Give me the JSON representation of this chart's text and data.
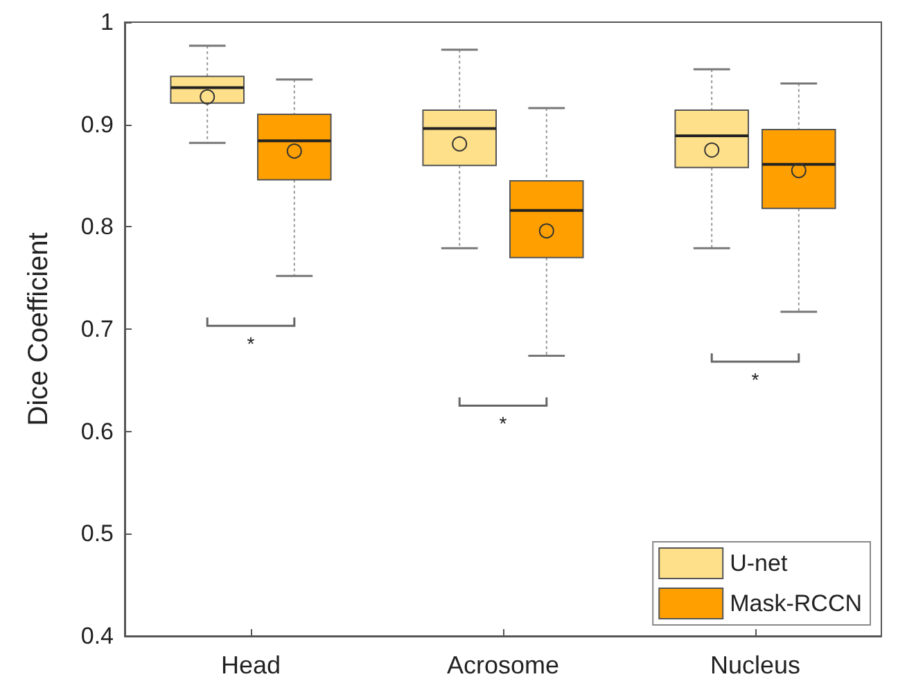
{
  "chart_data": {
    "type": "box",
    "ylabel": "Dice Coefficient",
    "categories": [
      "Head",
      "Acrosome",
      "Nucleus"
    ],
    "series": [
      {
        "name": "U-net",
        "color": "#ffe08a",
        "boxes": [
          {
            "low": 0.882,
            "q1": 0.921,
            "median": 0.936,
            "q3": 0.947,
            "high": 0.977,
            "mean": 0.927
          },
          {
            "low": 0.779,
            "q1": 0.86,
            "median": 0.896,
            "q3": 0.914,
            "high": 0.973,
            "mean": 0.881
          },
          {
            "low": 0.779,
            "q1": 0.858,
            "median": 0.889,
            "q3": 0.914,
            "high": 0.954,
            "mean": 0.875
          }
        ]
      },
      {
        "name": "Mask-RCCN",
        "color": "#ffa000",
        "boxes": [
          {
            "low": 0.752,
            "q1": 0.846,
            "median": 0.884,
            "q3": 0.91,
            "high": 0.944,
            "mean": 0.874
          },
          {
            "low": 0.674,
            "q1": 0.77,
            "median": 0.816,
            "q3": 0.845,
            "high": 0.916,
            "mean": 0.796
          },
          {
            "low": 0.717,
            "q1": 0.818,
            "median": 0.861,
            "q3": 0.895,
            "high": 0.94,
            "mean": 0.855
          }
        ]
      }
    ],
    "ylim": [
      0.4,
      1
    ],
    "yticks": [
      0.4,
      0.5,
      0.6,
      0.7,
      0.8,
      0.9,
      1
    ],
    "grid": false,
    "legend": "bottom right",
    "annotations": [
      "*",
      "*",
      "*"
    ]
  }
}
